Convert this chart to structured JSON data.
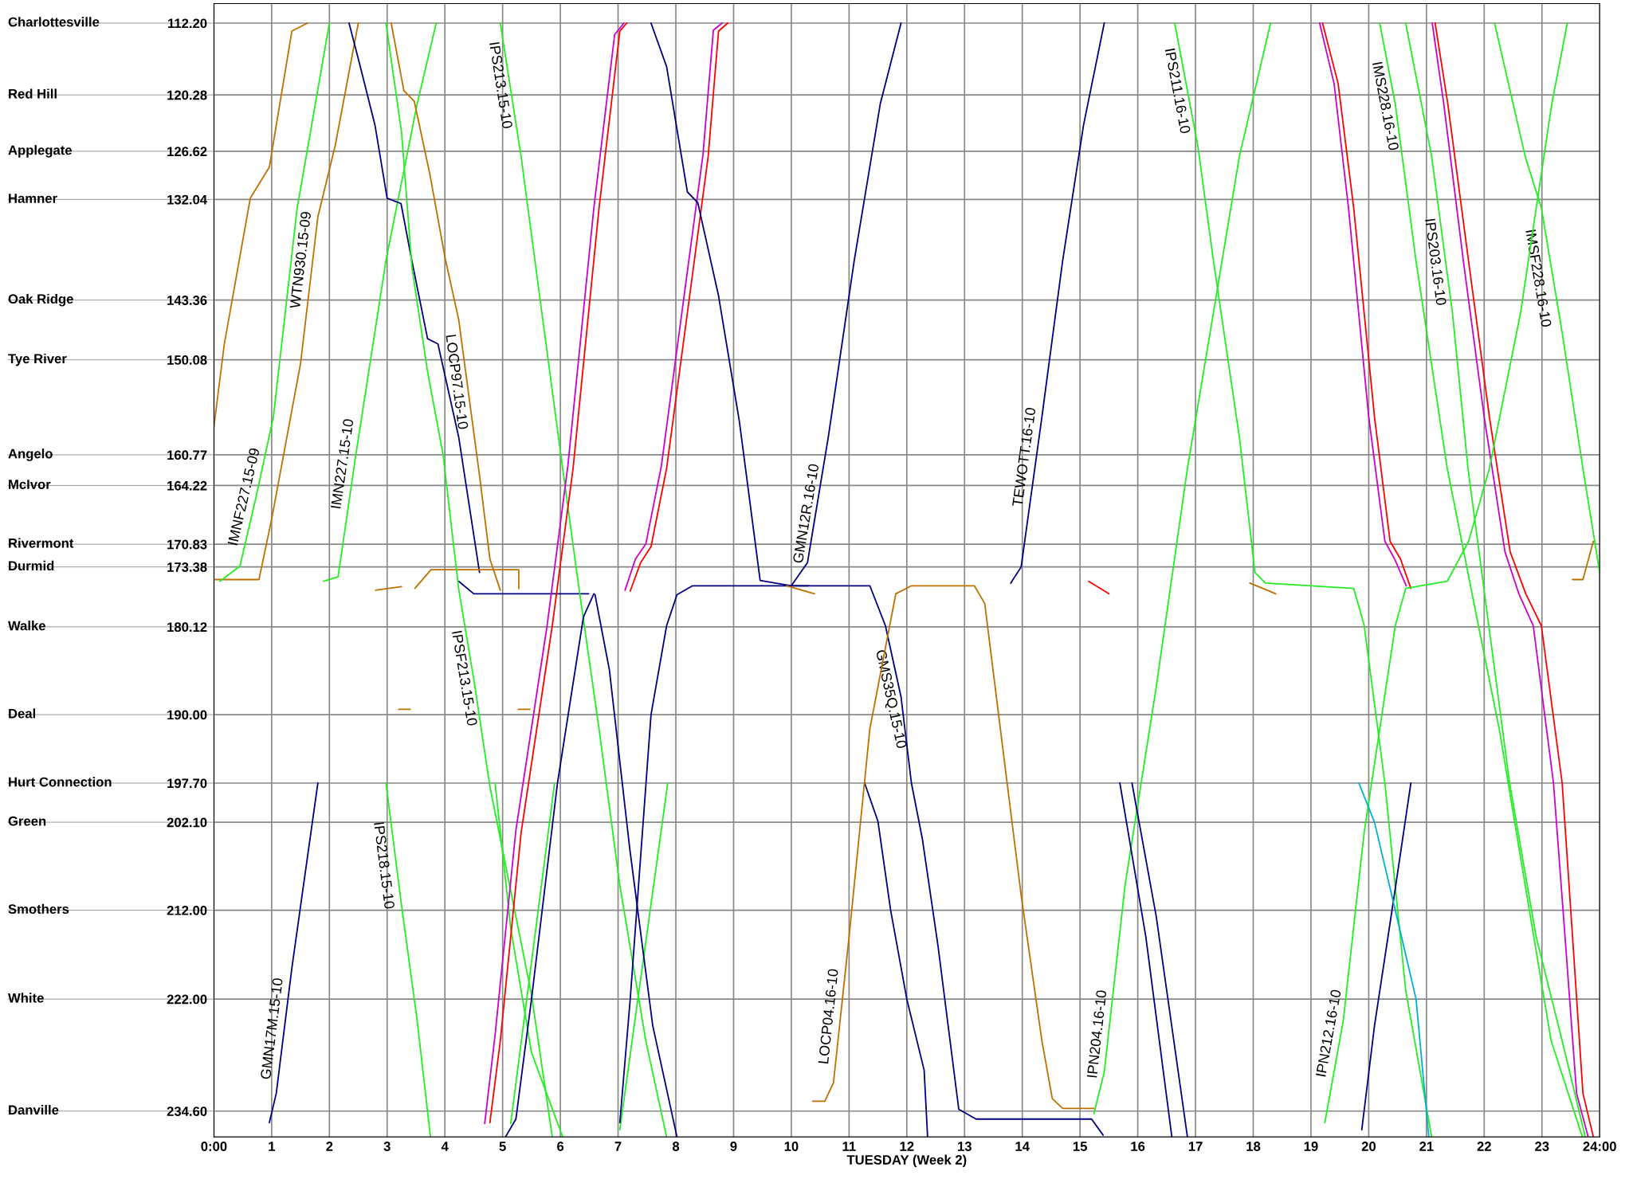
{
  "chart_data": {
    "type": "line",
    "xlabel": "TUESDAY (Week 2)",
    "xlim": [
      0,
      24
    ],
    "xticks": [
      {
        "value": 0,
        "label": "0:00"
      },
      1,
      2,
      3,
      4,
      5,
      6,
      7,
      8,
      9,
      10,
      11,
      12,
      13,
      14,
      15,
      16,
      17,
      18,
      19,
      20,
      21,
      22,
      23,
      {
        "value": 24,
        "label": "24:00"
      }
    ],
    "ylim": [
      237.5,
      110.0
    ],
    "yticks": [
      {
        "value": 112.2,
        "label": "112.20"
      },
      {
        "value": 120.28,
        "label": "120.28"
      },
      {
        "value": 126.62,
        "label": "126.62"
      },
      {
        "value": 132.04,
        "label": "132.04"
      },
      {
        "value": 143.36,
        "label": "143.36"
      },
      {
        "value": 150.08,
        "label": "150.08"
      },
      {
        "value": 160.77,
        "label": "160.77"
      },
      {
        "value": 164.22,
        "label": "164.22"
      },
      {
        "value": 170.83,
        "label": "170.83"
      },
      {
        "value": 173.38,
        "label": "173.38"
      },
      {
        "value": 180.12,
        "label": "180.12"
      },
      {
        "value": 190.0,
        "label": "190.00"
      },
      {
        "value": 197.7,
        "label": "197.70"
      },
      {
        "value": 202.1,
        "label": "202.10"
      },
      {
        "value": 212.0,
        "label": "212.00"
      },
      {
        "value": 222.0,
        "label": "222.00"
      },
      {
        "value": 234.6,
        "label": "234.60"
      }
    ],
    "ref_lines": [
      {
        "axis": "y",
        "value": 112.2,
        "label": "Charlottesville"
      },
      {
        "axis": "y",
        "value": 120.28,
        "label": "Red Hill"
      },
      {
        "axis": "y",
        "value": 126.62,
        "label": "Applegate"
      },
      {
        "axis": "y",
        "value": 132.04,
        "label": "Hamner"
      },
      {
        "axis": "y",
        "value": 143.36,
        "label": "Oak Ridge"
      },
      {
        "axis": "y",
        "value": 150.08,
        "label": "Tye River"
      },
      {
        "axis": "y",
        "value": 160.77,
        "label": "Angelo"
      },
      {
        "axis": "y",
        "value": 164.22,
        "label": "McIvor"
      },
      {
        "axis": "y",
        "value": 170.83,
        "label": "Rivermont"
      },
      {
        "axis": "y",
        "value": 173.38,
        "label": "Durmid"
      },
      {
        "axis": "y",
        "value": 180.12,
        "label": "Walke"
      },
      {
        "axis": "y",
        "value": 190.0,
        "label": "Deal"
      },
      {
        "axis": "y",
        "value": 197.7,
        "label": "Hurt Connection"
      },
      {
        "axis": "y",
        "value": 202.1,
        "label": "Green"
      },
      {
        "axis": "y",
        "value": 212.0,
        "label": "Smothers"
      },
      {
        "axis": "y",
        "value": 222.0,
        "label": "White"
      },
      {
        "axis": "y",
        "value": 234.6,
        "label": "Danville"
      }
    ],
    "grid": "x",
    "series": [
      {
        "color": "#c07000",
        "x": [
          0,
          0.18,
          0.63,
          0.96,
          1.35,
          1.62
        ],
        "values": [
          157.6,
          148.3,
          131.9,
          128.4,
          113.1,
          112.2
        ]
      },
      {
        "color": "#c07000",
        "x": [
          0,
          0.78,
          1.0,
          1.5,
          1.8,
          2.1,
          2.5
        ],
        "values": [
          174.8,
          174.8,
          168,
          150.5,
          134,
          126,
          112.2
        ]
      },
      {
        "color": "#22ee22",
        "x": [
          0.1,
          0.45,
          0.72,
          1.03,
          1.44,
          2.0
        ],
        "values": [
          175.0,
          173.3,
          165.8,
          156.5,
          133.1,
          112.2
        ]
      },
      {
        "color": "#22ee22",
        "x": [
          1.9,
          2.15,
          2.45,
          2.98,
          3.52,
          3.85
        ],
        "values": [
          175.0,
          174.5,
          161.1,
          138.9,
          121.3,
          112.2
        ]
      },
      {
        "color": "#000080",
        "x": [
          2.34,
          2.52,
          2.79,
          3.0,
          3.24,
          3.43,
          3.7,
          3.88,
          4.24,
          4.6
        ],
        "values": [
          112.2,
          116.7,
          123.7,
          131.9,
          132.5,
          139,
          147.7,
          148.3,
          158.8,
          174.0
        ]
      },
      {
        "color": "#000080",
        "x": [
          4.24,
          4.5,
          6.49
        ],
        "values": [
          175.0,
          176.4,
          176.4
        ]
      },
      {
        "color": "#c07000",
        "x": [
          3.07,
          3.29,
          3.47,
          3.74,
          4.0,
          4.24,
          4.6,
          4.78,
          4.96
        ],
        "values": [
          112.2,
          119.8,
          121.0,
          129.2,
          138.5,
          145.6,
          163.1,
          172.5,
          176.0
        ]
      },
      {
        "color": "#c07000",
        "x": [
          3.48,
          3.76,
          5.28,
          5.28
        ],
        "values": [
          175.8,
          173.7,
          173.7,
          175.8
        ]
      },
      {
        "color": "#c07000",
        "x": [
          2.8,
          3.25
        ],
        "values": [
          176.0,
          175.6
        ]
      },
      {
        "color": "#c07000",
        "x": [
          3.2,
          3.4
        ],
        "values": [
          189.4,
          189.4
        ]
      },
      {
        "color": "#c07000",
        "x": [
          5.27,
          5.47
        ],
        "values": [
          189.4,
          189.4
        ]
      },
      {
        "color": "#22ee22",
        "x": [
          2.98,
          3.25,
          3.43,
          3.7,
          3.97,
          4.24,
          4.51,
          4.78,
          5.14,
          5.5,
          5.86
        ],
        "values": [
          112.2,
          124.5,
          139.7,
          151.4,
          160.8,
          175.9,
          186.4,
          198.1,
          209.8,
          221.5,
          237.5
        ]
      },
      {
        "color": "#22ee22",
        "x": [
          4.96,
          5.32,
          5.68,
          6.04,
          6.31,
          6.67,
          7.03,
          7.48,
          7.84
        ],
        "values": [
          112.2,
          127.2,
          144.8,
          162.3,
          175.2,
          191.6,
          209.2,
          226.7,
          237.5
        ]
      },
      {
        "color": "#22ee22",
        "x": [
          2.98,
          3.25,
          3.52,
          3.75
        ],
        "values": [
          197.7,
          211.5,
          224.4,
          237.5
        ]
      },
      {
        "color": "#22ee22",
        "x": [
          7.03,
          7.86
        ],
        "values": [
          236.7,
          197.7
        ]
      },
      {
        "color": "#22ee22",
        "x": [
          5.14,
          5.9
        ],
        "values": [
          236.0,
          197.7
        ]
      },
      {
        "color": "#22ee22",
        "x": [
          4.87,
          5.14,
          5.5,
          6.04
        ],
        "values": [
          197.7,
          214,
          228,
          237.5
        ]
      },
      {
        "color": "#cc00cc",
        "x": [
          4.69,
          4.87,
          5.23,
          5.77,
          6.13,
          6.58,
          6.94,
          7.1
        ],
        "values": [
          236,
          226,
          203,
          180,
          162,
          133,
          113.5,
          112.2
        ]
      },
      {
        "color": "#ff0000",
        "x": [
          4.78,
          4.96,
          5.32,
          5.86,
          6.22,
          6.67,
          7.03,
          7.15
        ],
        "values": [
          235.9,
          226.7,
          203.3,
          180.0,
          162.3,
          133.0,
          113.1,
          112.2
        ]
      },
      {
        "color": "#cc00cc",
        "x": [
          7.12,
          7.3,
          7.48,
          7.75,
          8.11,
          8.47,
          8.65,
          8.8
        ],
        "values": [
          176,
          172.5,
          170.8,
          162,
          144.5,
          127,
          113,
          112.2
        ]
      },
      {
        "color": "#ff0000",
        "x": [
          7.21,
          7.39,
          7.57,
          7.84,
          8.2,
          8.56,
          8.74,
          8.9
        ],
        "values": [
          176.1,
          172.9,
          171.1,
          162.3,
          144.8,
          127.2,
          113.1,
          112.2
        ]
      },
      {
        "color": "#000080",
        "x": [
          7.57,
          7.84,
          8.2,
          8.38,
          8.74,
          9.1,
          9.46,
          10.0,
          10.3
        ],
        "values": [
          112.2,
          117.1,
          131.2,
          132.4,
          142.9,
          157,
          174.9,
          175.5,
          175.5
        ]
      },
      {
        "color": "#000080",
        "x": [
          10.0,
          10.28,
          10.64,
          11.09,
          11.54,
          11.9
        ],
        "values": [
          175.5,
          172.9,
          158.8,
          138.9,
          121.3,
          112.2
        ]
      },
      {
        "color": "#000080",
        "x": [
          7.03,
          7.21,
          7.57,
          7.84,
          8.02,
          8.29,
          11.36,
          11.63,
          11.9,
          12.08,
          12.27,
          12.54,
          12.9,
          13.2,
          15.2,
          15.4
        ],
        "values": [
          235.9,
          222,
          190,
          180,
          176.5,
          175.5,
          175.5,
          180,
          188,
          197.7,
          204,
          216,
          234.4,
          235.5,
          235.5,
          237.3
        ]
      },
      {
        "color": "#000080",
        "x": [
          11.27,
          11.5,
          11.72,
          12.0,
          12.3,
          12.36
        ],
        "values": [
          197.7,
          202,
          212,
          222,
          230,
          237.5
        ]
      },
      {
        "color": "#000080",
        "x": [
          5.05,
          5.23,
          5.5,
          5.95,
          6.4,
          6.58
        ],
        "values": [
          237.5,
          235.5,
          222,
          197.7,
          179,
          176.4
        ]
      },
      {
        "color": "#000080",
        "x": [
          6.6,
          6.85,
          7.2,
          7.6,
          8.02
        ],
        "values": [
          176.5,
          185,
          205,
          225,
          237.5
        ]
      },
      {
        "color": "#c07000",
        "x": [
          10.37,
          10.58,
          10.73,
          11.0,
          11.36,
          11.81,
          12.08,
          13.17,
          13.35,
          13.62,
          13.98,
          14.34,
          14.52,
          14.7,
          15.24
        ],
        "values": [
          233.5,
          233.5,
          231.4,
          215,
          191.6,
          176.4,
          175.5,
          175.5,
          177.5,
          191.6,
          210.3,
          226.7,
          233.2,
          234.3,
          234.3
        ]
      },
      {
        "color": "#c07000",
        "x": [
          9.92,
          10.4
        ],
        "values": [
          175.5,
          176.4
        ]
      },
      {
        "color": "#000080",
        "x": [
          13.8,
          13.98,
          14.34,
          14.7,
          15.06,
          15.42
        ],
        "values": [
          175.2,
          173.4,
          156.5,
          138.9,
          123.7,
          112.2
        ]
      },
      {
        "color": "#000080",
        "x": [
          0.96,
          1.08,
          1.35,
          1.8
        ],
        "values": [
          235.9,
          232.6,
          218.5,
          197.7
        ]
      },
      {
        "color": "#22ee22",
        "x": [
          15.24,
          15.42,
          15.78,
          16.32,
          16.86,
          17.31,
          17.76,
          18.3
        ],
        "values": [
          234.9,
          230.2,
          209.2,
          186.9,
          162.3,
          144.8,
          127.2,
          112.2
        ]
      },
      {
        "color": "#000080",
        "x": [
          15.69,
          16.14,
          16.59
        ],
        "values": [
          197.7,
          215,
          237.5
        ]
      },
      {
        "color": "#000080",
        "x": [
          15.9,
          16.32,
          16.86
        ],
        "values": [
          197.7,
          212.7,
          237.5
        ]
      },
      {
        "color": "#22ee22",
        "x": [
          16.64,
          17.04,
          17.31,
          17.76,
          18.03,
          18.21,
          19.74,
          19.92,
          20.28,
          20.64,
          21.09
        ],
        "values": [
          112.2,
          126,
          138.9,
          158.8,
          174.0,
          175.2,
          175.8,
          179.9,
          197.7,
          221,
          237.5
        ]
      },
      {
        "color": "#c07000",
        "x": [
          17.94,
          18.39
        ],
        "values": [
          175.2,
          176.4
        ]
      },
      {
        "color": "#cc00cc",
        "x": [
          19.15,
          19.4,
          19.65,
          20.0,
          20.28,
          20.45,
          20.65
        ],
        "values": [
          112.2,
          119,
          133,
          156.5,
          170.5,
          172.5,
          175.5
        ]
      },
      {
        "color": "#ff0000",
        "x": [
          19.2,
          19.47,
          19.74,
          20.1,
          20.37,
          20.55,
          20.73
        ],
        "values": [
          112.2,
          119,
          133,
          156.5,
          170.5,
          172.5,
          175.8
        ]
      },
      {
        "color": "#22ee22",
        "x": [
          20.19,
          20.46,
          20.82,
          21.36,
          21.9,
          22.26,
          22.71,
          23.16,
          23.7
        ],
        "values": [
          112.2,
          121.3,
          139,
          162.3,
          180,
          191.6,
          209.2,
          226.7,
          237.5
        ]
      },
      {
        "color": "#22ee22",
        "x": [
          20.64,
          21.09,
          21.45,
          21.72,
          22.08,
          22.44,
          22.9,
          23.35,
          23.75
        ],
        "values": [
          112.2,
          127.2,
          144.8,
          162.3,
          180,
          197.7,
          215,
          226.7,
          237.5
        ]
      },
      {
        "color": "#22ee22",
        "x": [
          22.18,
          22.71,
          22.99,
          23.35,
          23.71,
          24.0
        ],
        "values": [
          112.2,
          127.2,
          133,
          147,
          162.3,
          174
        ]
      },
      {
        "color": "#cc00cc",
        "x": [
          21.1,
          21.3,
          21.64,
          22.0,
          22.36,
          22.6,
          22.85,
          23.2,
          23.4,
          23.6,
          23.8
        ],
        "values": [
          112.2,
          121.3,
          139,
          156.5,
          171.7,
          176.4,
          180,
          197.7,
          215,
          232.6,
          237.5
        ]
      },
      {
        "color": "#ff0000",
        "x": [
          21.15,
          21.37,
          21.73,
          22.09,
          22.45,
          22.72,
          22.99,
          23.35,
          23.53,
          23.71,
          23.89
        ],
        "values": [
          112.2,
          121.3,
          139,
          156.5,
          171.7,
          176.4,
          180,
          197.7,
          215,
          232.6,
          237.5
        ]
      },
      {
        "color": "#22ee22",
        "x": [
          19.24,
          19.56,
          19.92,
          20.46,
          20.64,
          21.36,
          21.73,
          22.09,
          22.63,
          23.17,
          23.44
        ],
        "values": [
          235.9,
          224.4,
          203.3,
          180,
          175.8,
          175,
          170.5,
          162.3,
          144.8,
          121.3,
          112.2
        ]
      },
      {
        "color": "#000080",
        "x": [
          19.88,
          20.1,
          20.45,
          20.73
        ],
        "values": [
          236.7,
          225,
          210,
          197.7
        ]
      },
      {
        "color": "#00b0d0",
        "x": [
          19.83,
          20.1,
          20.46,
          20.82,
          21.04
        ],
        "values": [
          197.7,
          202.1,
          212,
          222,
          237.5
        ]
      },
      {
        "color": "#c07000",
        "x": [
          23.53,
          23.71,
          23.89
        ],
        "values": [
          174.8,
          174.8,
          170.5
        ]
      },
      {
        "color": "#ff0000",
        "x": [
          15.15,
          15.5
        ],
        "values": [
          175.0,
          176.4
        ]
      }
    ],
    "annotations": [
      {
        "text": "IMNF227.15-09",
        "x": 0.72,
        "y": 165.8
      },
      {
        "text": "WTN930.15-09",
        "x": 1.71,
        "y": 139.0
      },
      {
        "text": "IMN227.15-10",
        "x": 2.43,
        "y": 162.0
      },
      {
        "text": "LOCP97.15-10",
        "x": 4.38,
        "y": 152.4
      },
      {
        "text": "IPS213.15-10",
        "x": 5.14,
        "y": 119.0
      },
      {
        "text": "IPSF213.15-10",
        "x": 4.51,
        "y": 185.7
      },
      {
        "text": "IPS218.15-10",
        "x": 3.12,
        "y": 206.8
      },
      {
        "text": "GMN17M.15-10",
        "x": 1.21,
        "y": 225.5
      },
      {
        "text": "GMN12R.16-10",
        "x": 10.46,
        "y": 167.6
      },
      {
        "text": "GMS35Q.15-10",
        "x": 11.9,
        "y": 188.0
      },
      {
        "text": "LOCP04.16-10",
        "x": 10.85,
        "y": 224.1
      },
      {
        "text": "TEWOTT.16-10",
        "x": 14.24,
        "y": 161.2
      },
      {
        "text": "IPN204.16-10",
        "x": 15.5,
        "y": 226.1
      },
      {
        "text": "IPS211.16-10",
        "x": 16.86,
        "y": 119.6
      },
      {
        "text": "IMS228.16-10",
        "x": 20.46,
        "y": 121.3
      },
      {
        "text": "IPS203.16-10",
        "x": 21.33,
        "y": 138.9
      },
      {
        "text": "IMSF228.16-10",
        "x": 23.11,
        "y": 140.7
      },
      {
        "text": "IPN212.16-10",
        "x": 19.51,
        "y": 226.1
      }
    ]
  }
}
